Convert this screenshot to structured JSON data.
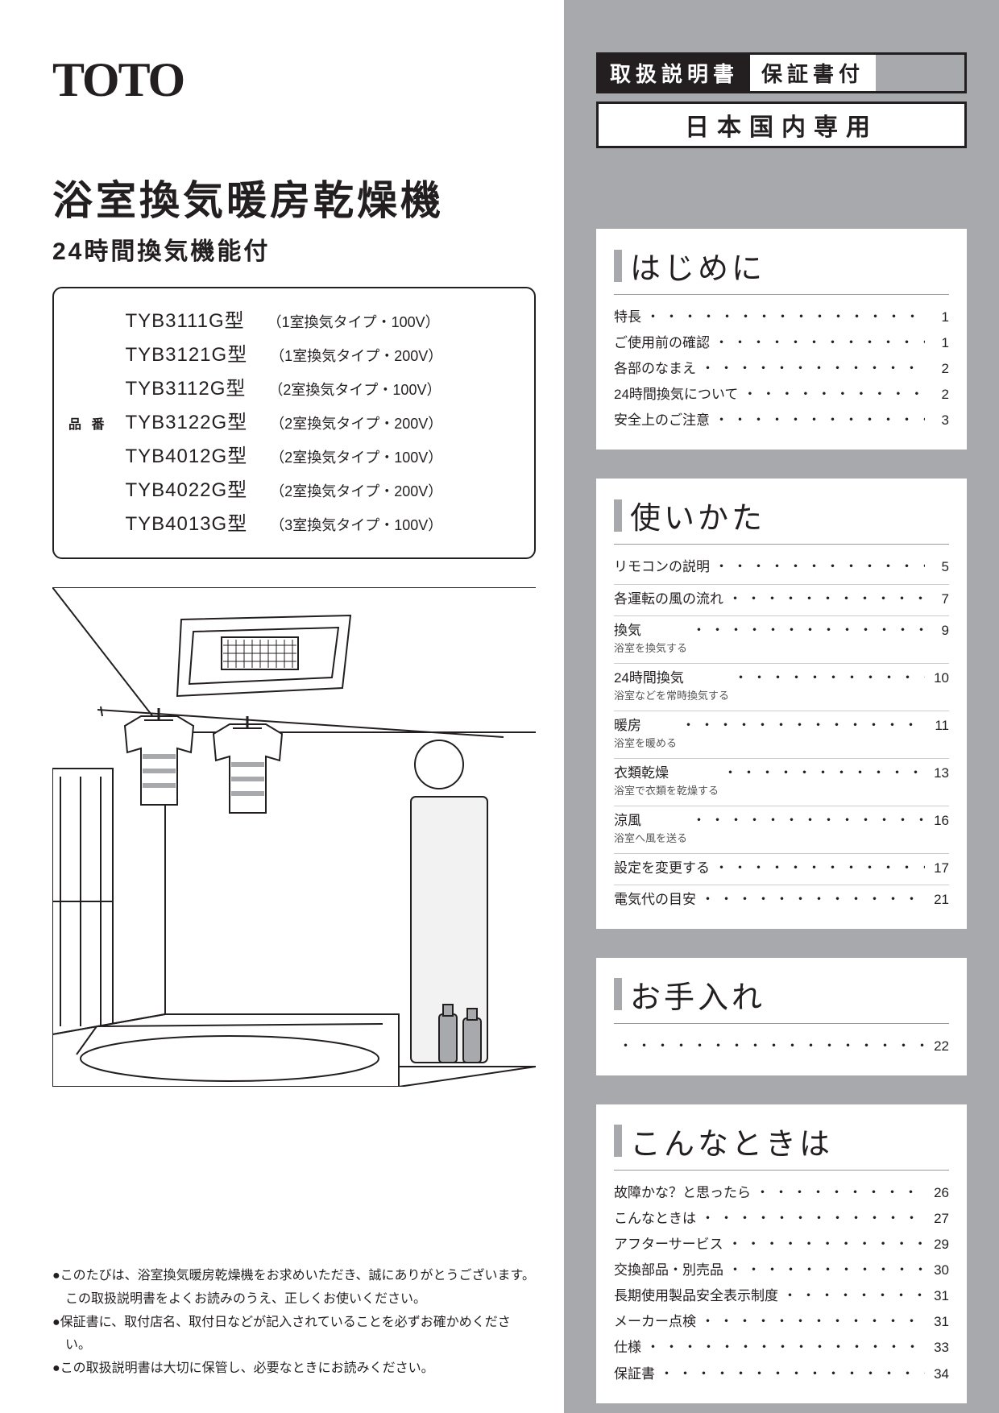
{
  "brand": "TOTO",
  "badges": {
    "manual": "取扱説明書",
    "warranty": "保証書付"
  },
  "domestic": "日本国内専用",
  "title": "浴室換気暖房乾燥機",
  "subtitle": "24時間換気機能付",
  "model_label": "品 番",
  "models": [
    {
      "m": "TYB3111G型",
      "d": "（1室換気タイプ・100V）"
    },
    {
      "m": "TYB3121G型",
      "d": "（1室換気タイプ・200V）"
    },
    {
      "m": "TYB3112G型",
      "d": "（2室換気タイプ・100V）"
    },
    {
      "m": "TYB3122G型",
      "d": "（2室換気タイプ・200V）"
    },
    {
      "m": "TYB4012G型",
      "d": "（2室換気タイプ・100V）"
    },
    {
      "m": "TYB4022G型",
      "d": "（2室換気タイプ・200V）"
    },
    {
      "m": "TYB4013G型",
      "d": "（3室換気タイプ・100V）"
    }
  ],
  "notes": [
    "●このたびは、浴室換気暖房乾燥機をお求めいただき、誠にありがとうございます。この取扱説明書をよくお読みのうえ、正しくお使いください。",
    "●保証書に、取付店名、取付日などが記入されていることを必ずお確かめください。",
    "●この取扱説明書は大切に保管し、必要なときにお読みください。"
  ],
  "toc": [
    {
      "head": "はじめに",
      "items": [
        {
          "t": "特長",
          "pg": "1"
        },
        {
          "t": "ご使用前の確認",
          "pg": "1"
        },
        {
          "t": "各部のなまえ",
          "pg": "2"
        },
        {
          "t": "24時間換気について",
          "pg": "2"
        },
        {
          "t": "安全上のご注意",
          "pg": "3"
        }
      ]
    },
    {
      "head": "使いかた",
      "items": [
        {
          "t": "リモコンの説明",
          "pg": "5",
          "div": true
        },
        {
          "t": "各運転の風の流れ",
          "pg": "7",
          "div": true
        },
        {
          "t": "換気",
          "sub": "浴室を換気する",
          "pg": "9",
          "div": true
        },
        {
          "t": "24時間換気",
          "sub": "浴室などを常時換気する",
          "pg": "10",
          "div": true
        },
        {
          "t": "暖房",
          "sub": "浴室を暖める",
          "pg": "11",
          "div": true
        },
        {
          "t": "衣類乾燥",
          "sub": "浴室で衣類を乾燥する",
          "pg": "13",
          "div": true
        },
        {
          "t": "涼風",
          "sub": "浴室へ風を送る",
          "pg": "16",
          "div": true
        },
        {
          "t": "設定を変更する",
          "pg": "17",
          "div": true
        },
        {
          "t": "電気代の目安",
          "pg": "21"
        }
      ]
    },
    {
      "head": "お手入れ",
      "items": [
        {
          "t": "",
          "pg": "22"
        }
      ]
    },
    {
      "head": "こんなときは",
      "items": [
        {
          "t": "故障かな？と思ったら",
          "pg": "26"
        },
        {
          "t": "こんなときは",
          "pg": "27"
        },
        {
          "t": "アフターサービス",
          "pg": "29"
        },
        {
          "t": "交換部品・別売品",
          "pg": "30"
        },
        {
          "t": "長期使用製品安全表示制度",
          "pg": "31"
        },
        {
          "t": "メーカー点検",
          "pg": "31"
        },
        {
          "t": "仕様",
          "pg": "33"
        },
        {
          "t": "保証書",
          "pg": "34"
        }
      ]
    }
  ]
}
